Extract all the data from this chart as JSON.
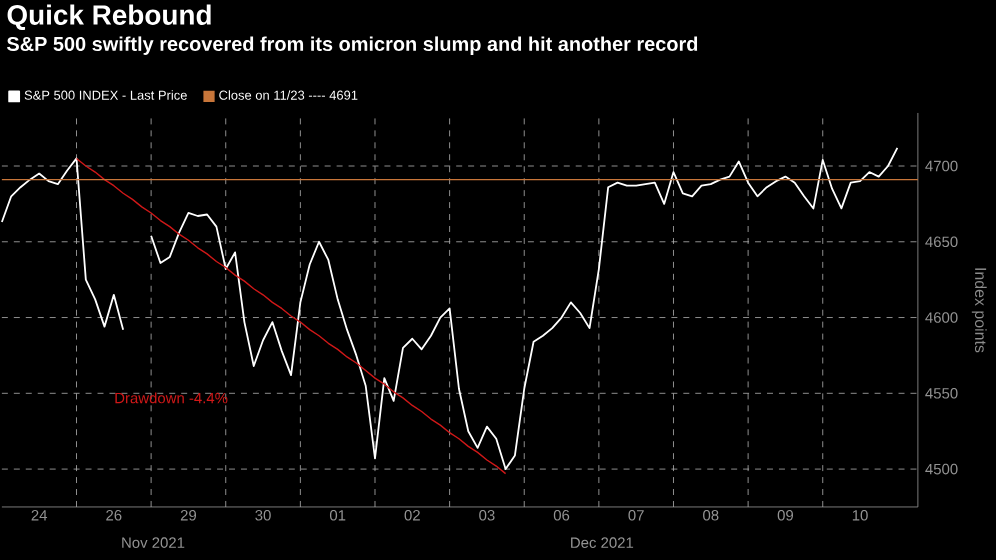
{
  "chart_data": {
    "type": "line",
    "title": "Quick Rebound",
    "subtitle": "S&P 500 swiftly recovered from its omicron slump and hit another record",
    "ylabel": "Index points",
    "annotations": [
      "Nov 2021",
      "Dec 2021"
    ],
    "categories": [
      null,
      null,
      null,
      null,
      "24",
      null,
      null,
      null,
      null,
      null,
      null,
      null,
      "26",
      null,
      null,
      null,
      null,
      null,
      null,
      null,
      "29",
      null,
      null,
      null,
      null,
      null,
      null,
      null,
      "30",
      null,
      null,
      null,
      null,
      null,
      null,
      null,
      "01",
      null,
      null,
      null,
      null,
      null,
      null,
      null,
      "02",
      null,
      null,
      null,
      null,
      null,
      null,
      null,
      "03",
      null,
      null,
      null,
      null,
      null,
      null,
      null,
      "06",
      null,
      null,
      null,
      null,
      null,
      null,
      null,
      "07",
      null,
      null,
      null,
      null,
      null,
      null,
      null,
      "08",
      null,
      null,
      null,
      null,
      null,
      null,
      null,
      "09",
      null,
      null,
      null,
      null,
      null,
      null,
      null,
      "10",
      null,
      null,
      null,
      null
    ],
    "ylim": [
      4475,
      4735
    ],
    "yticks": [
      4500,
      4550,
      4600,
      4650,
      4700
    ],
    "grid": true,
    "legend": "top left",
    "marker": "none",
    "line_style": "solid",
    "ref_lines": [
      {
        "axis": "y",
        "value": 4691,
        "label": "Close on 11/23 ---- 4691",
        "color": "#c8763a"
      }
    ],
    "series": [
      {
        "name": "S&P 500 INDEX - Last Price",
        "color": "#ffffff",
        "values": [
          4663,
          4680,
          4686,
          4691,
          4695,
          4690,
          4688,
          4697,
          4705,
          4625,
          4612,
          4594,
          4615,
          4592,
          null,
          null,
          4654,
          4636,
          4640,
          4656,
          4669,
          4667,
          4668,
          4660,
          4632,
          4643,
          4597,
          4568,
          4585,
          4597,
          4578,
          4562,
          4610,
          4635,
          4650,
          4638,
          4612,
          4592,
          4575,
          4555,
          4507,
          4560,
          4545,
          4580,
          4586,
          4579,
          4588,
          4600,
          4606,
          4553,
          4525,
          4514,
          4528,
          4520,
          4500,
          4509,
          4553,
          4584,
          4588,
          4593,
          4600,
          4610,
          4603,
          4593,
          4632,
          4686,
          4689,
          4687,
          4687,
          4688,
          4689,
          4675,
          4696,
          4682,
          4680,
          4687,
          4688,
          4691,
          4693,
          4703,
          4689,
          4680,
          4686,
          4690,
          4693,
          4689,
          4680,
          4672,
          4704,
          4685,
          4672,
          4689,
          4690,
          4696,
          4693,
          4700,
          4712
        ]
      },
      {
        "name": "Drawdown -4.4%",
        "color": "#d01818",
        "type": "line",
        "values": [
          null,
          null,
          null,
          null,
          null,
          null,
          null,
          null,
          4705,
          4700,
          4696,
          4691,
          4687,
          4682,
          4678,
          4673,
          4669,
          4664,
          4660,
          4655,
          4651,
          4646,
          4642,
          4637,
          4633,
          4628,
          4624,
          4619,
          4615,
          4610,
          4606,
          4601,
          4597,
          4592,
          4588,
          4583,
          4579,
          4574,
          4570,
          4565,
          4560,
          4556,
          4551,
          4547,
          4542,
          4538,
          4533,
          4529,
          4524,
          4520,
          4515,
          4511,
          4506,
          4502,
          4497,
          null,
          null,
          null,
          null,
          null,
          null,
          null,
          null,
          null,
          null,
          null,
          null,
          null,
          null,
          null,
          null,
          null,
          null,
          null,
          null,
          null,
          null,
          null,
          null,
          null,
          null,
          null,
          null,
          null,
          null,
          null,
          null,
          null,
          null,
          null,
          null,
          null,
          null,
          null,
          null,
          null,
          null
        ]
      }
    ]
  }
}
